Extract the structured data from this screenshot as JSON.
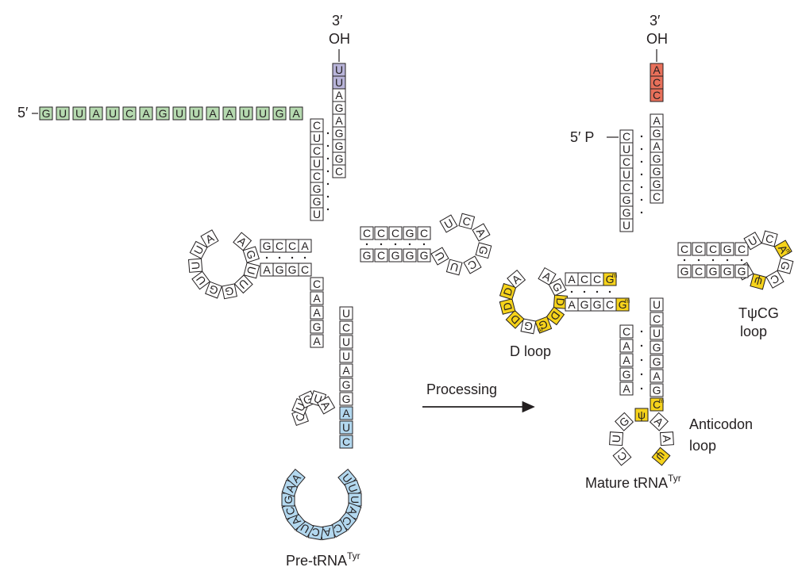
{
  "colors": {
    "leader": "#b6dab0",
    "intron": "#b3d8ef",
    "uu3": "#b8b4d9",
    "cca": "#e8705a",
    "modified": "#f6d31b",
    "default": "#ffffff",
    "stroke": "#231f20"
  },
  "labels": {
    "pre_five": "5′",
    "pre_three": "3′",
    "pre_oh": "OH",
    "pre_title": "Pre-tRNA",
    "pre_sup": "Tyr",
    "arrow": "Processing",
    "mature_three": "3′",
    "mature_oh": "OH",
    "mature_five": "5′ P",
    "mature_title": "Mature tRNA",
    "mature_sup": "Tyr",
    "d_loop": "D loop",
    "tpsi_loop_1": "TψCG",
    "tpsi_loop_2": "loop",
    "anticodon_1": "Anticodon",
    "anticodon_2": "loop"
  },
  "pre_trna": {
    "leader_5": [
      "G",
      "U",
      "U",
      "A",
      "U",
      "C",
      "A",
      "G",
      "U",
      "U",
      "A",
      "A",
      "U",
      "U",
      "G",
      "A"
    ],
    "tail_3": [
      "U",
      "U"
    ],
    "acceptor_3": [
      "A",
      "G",
      "A",
      "G",
      "G",
      "G",
      "C"
    ],
    "acceptor_5": [
      "C",
      "U",
      "C",
      "U",
      "C",
      "G",
      "G",
      "U"
    ],
    "d_stem_top": [
      "A",
      "C",
      "C",
      "G"
    ],
    "d_loop": [
      "A",
      "G",
      "U",
      "U",
      "G",
      "G",
      "U",
      "U",
      "U",
      "A"
    ],
    "d_stem_bottom": [
      "A",
      "G",
      "G",
      "C"
    ],
    "anticodon_stem_left": [
      "C",
      "A",
      "A",
      "G",
      "A"
    ],
    "anticodon_loop_left": [
      "C",
      "U",
      "G",
      "U",
      "A"
    ],
    "intron_loop": [
      "U",
      "U",
      "U",
      "A",
      "C",
      "C",
      "A",
      "C",
      "U",
      "A",
      "C",
      "G",
      "A",
      "A"
    ],
    "anticodon_stem_right": [
      "U",
      "C",
      "U",
      "U",
      "A",
      "G",
      "G",
      "A",
      "U",
      "C"
    ],
    "t_stem_top": [
      "C",
      "C",
      "C",
      "G",
      "C"
    ],
    "t_loop": [
      "U",
      "C",
      "A",
      "G",
      "C",
      "U",
      "U"
    ],
    "t_stem_bottom": [
      "G",
      "G",
      "G",
      "C",
      "G"
    ]
  },
  "mature_trna": {
    "cca_3": [
      "A",
      "C",
      "C"
    ],
    "acceptor_3": [
      "A",
      "G",
      "A",
      "G",
      "G",
      "G",
      "C"
    ],
    "acceptor_5": [
      "C",
      "U",
      "C",
      "U",
      "C",
      "G",
      "G",
      "U"
    ],
    "d_stem_top": [
      "A",
      "C",
      "C",
      "G"
    ],
    "d_stem_top_mod": [
      "",
      "",
      "",
      "m"
    ],
    "d_loop": [
      "A",
      "G",
      "D",
      "D",
      "G",
      "G",
      "D",
      "D",
      "D",
      "A"
    ],
    "d_loop_mod": [
      "",
      "",
      "",
      "",
      "m",
      "",
      "",
      "",
      "",
      ""
    ],
    "d_stem_bottom": [
      "A",
      "G",
      "G",
      "C",
      "G"
    ],
    "d_stem_bottom_mod": [
      "",
      "",
      "",
      "",
      "m"
    ],
    "anticodon_stem_left": [
      "C",
      "A",
      "A",
      "G",
      "A"
    ],
    "anticodon_loop": [
      "C",
      "U",
      "G",
      "ψ",
      "A",
      "A",
      "ψ"
    ],
    "anticodon_stem_right": [
      "U",
      "C",
      "U",
      "G",
      "G",
      "A",
      "G",
      "C"
    ],
    "anticodon_stem_right_mod": [
      "",
      "",
      "",
      "",
      "",
      "",
      "",
      "m"
    ],
    "t_stem_top": [
      "C",
      "C",
      "C",
      "G",
      "C"
    ],
    "t_loop": [
      "U",
      "C",
      "A",
      "G",
      "C",
      "ψ",
      "T"
    ],
    "t_loop_mod": [
      "",
      "",
      "m",
      "",
      "",
      "",
      ""
    ],
    "t_stem_bottom": [
      "G",
      "G",
      "G",
      "C",
      "G"
    ]
  }
}
